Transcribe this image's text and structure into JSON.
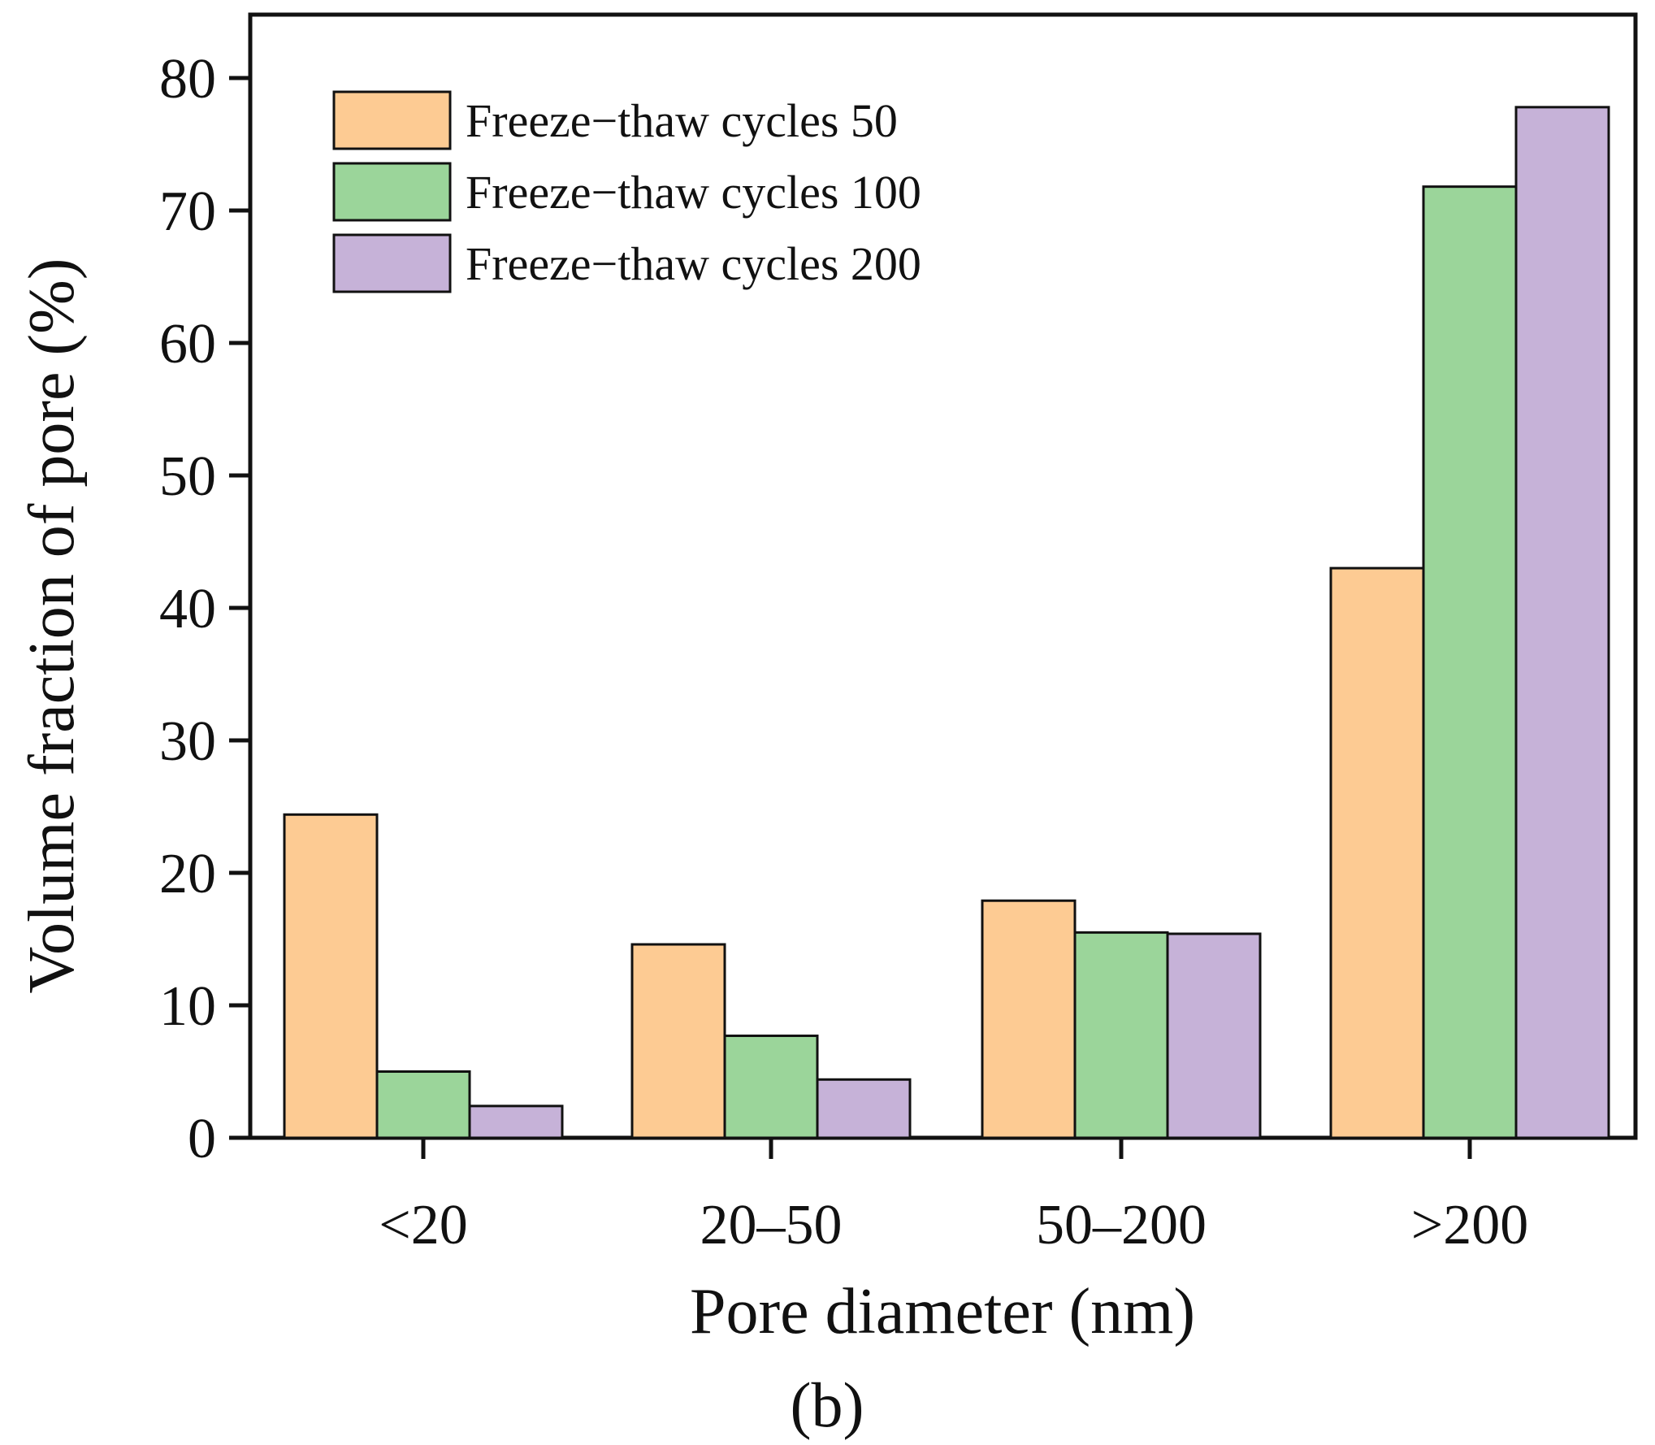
{
  "chart_data": {
    "type": "bar",
    "title": "",
    "xlabel": "Pore diameter (nm)",
    "ylabel": "Volume fraction of pore (%)",
    "panel_label": "(b)",
    "categories": [
      "<20",
      "20–50",
      "50–200",
      ">200"
    ],
    "ylim": [
      0,
      85
    ],
    "yticks": [
      0,
      10,
      20,
      30,
      40,
      50,
      60,
      70,
      80
    ],
    "grid": false,
    "legend_position": "top-left",
    "series": [
      {
        "name": "Freeze−thaw cycles 50",
        "color": "#FDCB93",
        "values": [
          24.4,
          14.6,
          17.9,
          43.0
        ]
      },
      {
        "name": "Freeze−thaw cycles 100",
        "color": "#9BD59A",
        "values": [
          5.0,
          7.7,
          15.5,
          71.8
        ]
      },
      {
        "name": "Freeze−thaw cycles 200",
        "color": "#C6B2D8",
        "values": [
          2.4,
          4.4,
          15.4,
          77.8
        ]
      }
    ]
  }
}
